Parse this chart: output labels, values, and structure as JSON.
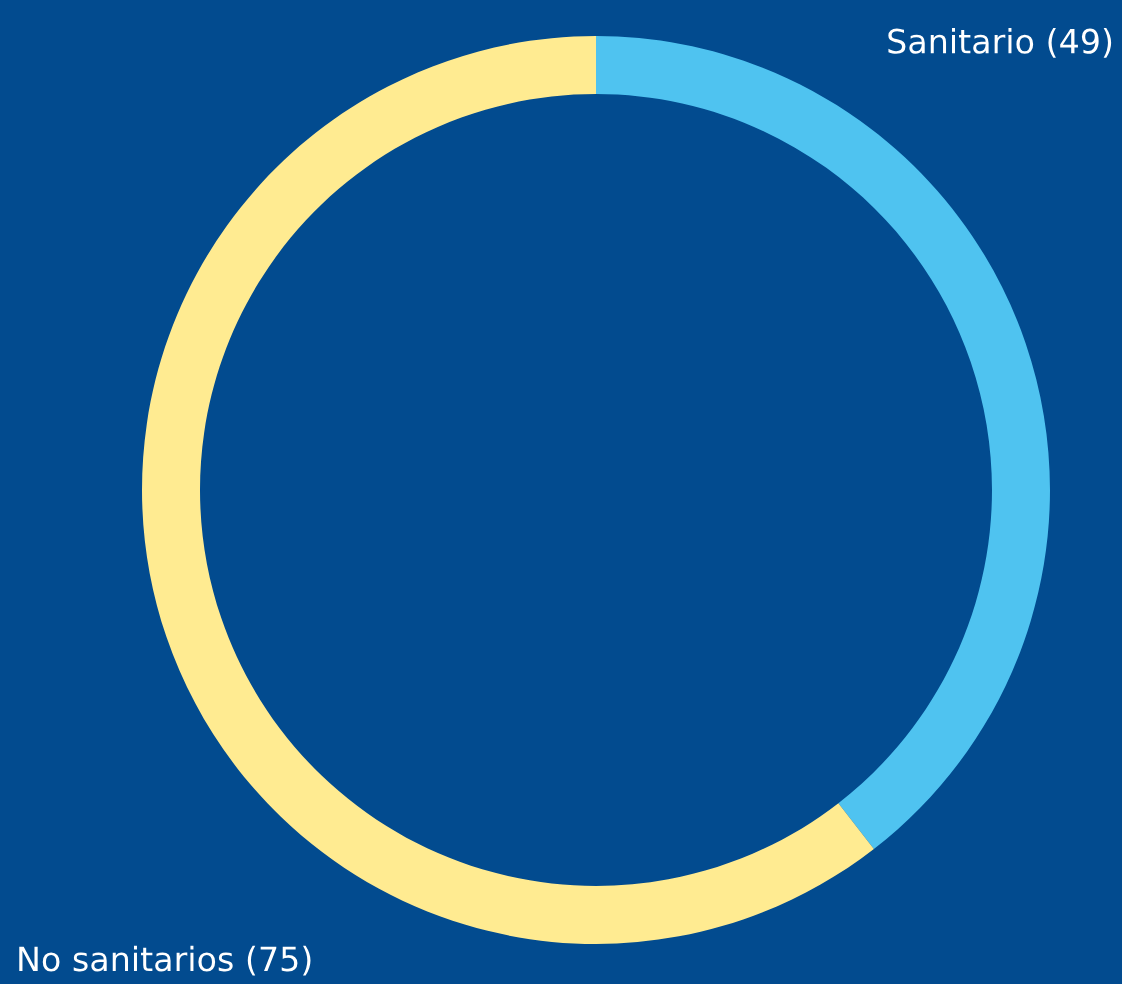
{
  "chart_data": {
    "type": "donut",
    "categories": [
      "Sanitario (49)",
      "No sanitarios (75)"
    ],
    "values": [
      49,
      75
    ],
    "colors": [
      "#4fc3f0",
      "#ffeb91"
    ],
    "legend": false
  }
}
